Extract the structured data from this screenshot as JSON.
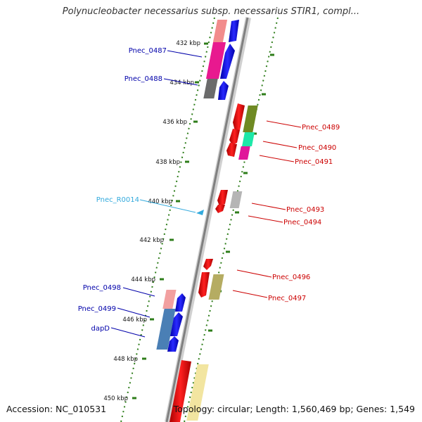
{
  "header": {
    "title": "Polynucleobacter necessarius subsp. necessarius STIR1, compl..."
  },
  "footer": {
    "accession": "Accession: NC_010531",
    "summary": "Topology: circular; Length: 1,560,469 bp; Genes: 1,549"
  },
  "colors": {
    "backbone": "#8c8c8c",
    "ticks": "#2e7d1a",
    "forward_label": "#0000aa",
    "reverse_label": "#cc0000",
    "rna_label": "#33aadd"
  },
  "scale_labels": [
    "432 kbp",
    "434 kbp",
    "436 kbp",
    "438 kbp",
    "440 kbp",
    "442 kbp",
    "444 kbp",
    "446 kbp",
    "448 kbp",
    "450 kbp"
  ],
  "gene_labels": {
    "forward": [
      "Pnec_0487",
      "Pnec_0488",
      "Pnec_0498",
      "Pnec_0499",
      "dapD"
    ],
    "reverse": [
      "Pnec_0489",
      "Pnec_0490",
      "Pnec_0491",
      "Pnec_0493",
      "Pnec_0494",
      "Pnec_0496",
      "Pnec_0497"
    ],
    "rna": [
      "Pnec_R0014"
    ]
  }
}
